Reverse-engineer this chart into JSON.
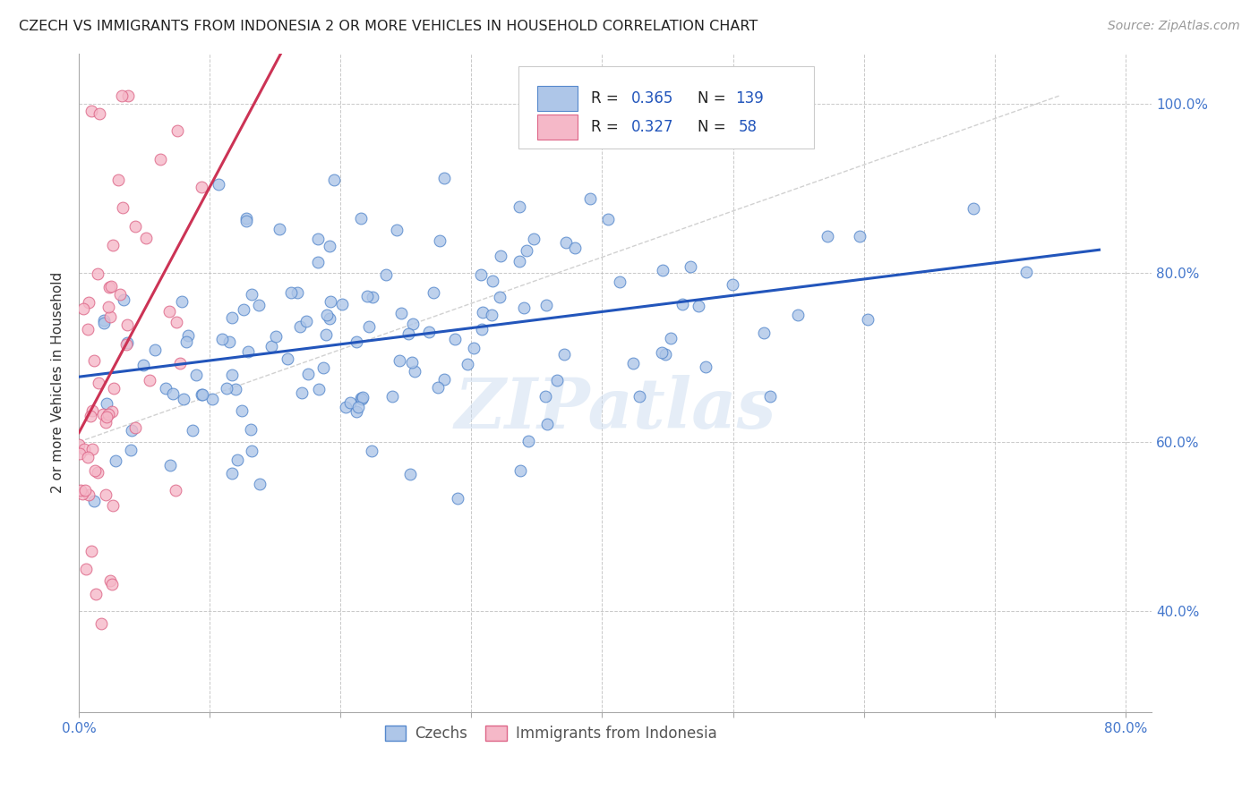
{
  "title": "CZECH VS IMMIGRANTS FROM INDONESIA 2 OR MORE VEHICLES IN HOUSEHOLD CORRELATION CHART",
  "source": "Source: ZipAtlas.com",
  "ylabel": "2 or more Vehicles in Household",
  "xlim": [
    0.0,
    0.82
  ],
  "ylim": [
    0.28,
    1.06
  ],
  "xtick_labels": [
    "0.0%",
    "",
    "",
    "",
    "",
    "",
    "",
    "",
    "80.0%"
  ],
  "xtick_vals": [
    0.0,
    0.1,
    0.2,
    0.3,
    0.4,
    0.5,
    0.6,
    0.7,
    0.8
  ],
  "ytick_labels": [
    "40.0%",
    "60.0%",
    "80.0%",
    "100.0%"
  ],
  "ytick_vals": [
    0.4,
    0.6,
    0.8,
    1.0
  ],
  "ytick_right_labels": [
    "40.0%",
    "60.0%",
    "80.0%",
    "100.0%"
  ],
  "czechs_color": "#aec6e8",
  "czechs_edge": "#5588cc",
  "indonesia_color": "#f5b8c8",
  "indonesia_edge": "#dd6688",
  "trend_czech_color": "#2255bb",
  "trend_indonesia_color": "#cc3355",
  "watermark": "ZIPatlas",
  "background_color": "#ffffff",
  "grid_color": "#bbbbbb",
  "tick_color": "#4477cc",
  "seed_czech": 42,
  "seed_indonesia": 77
}
